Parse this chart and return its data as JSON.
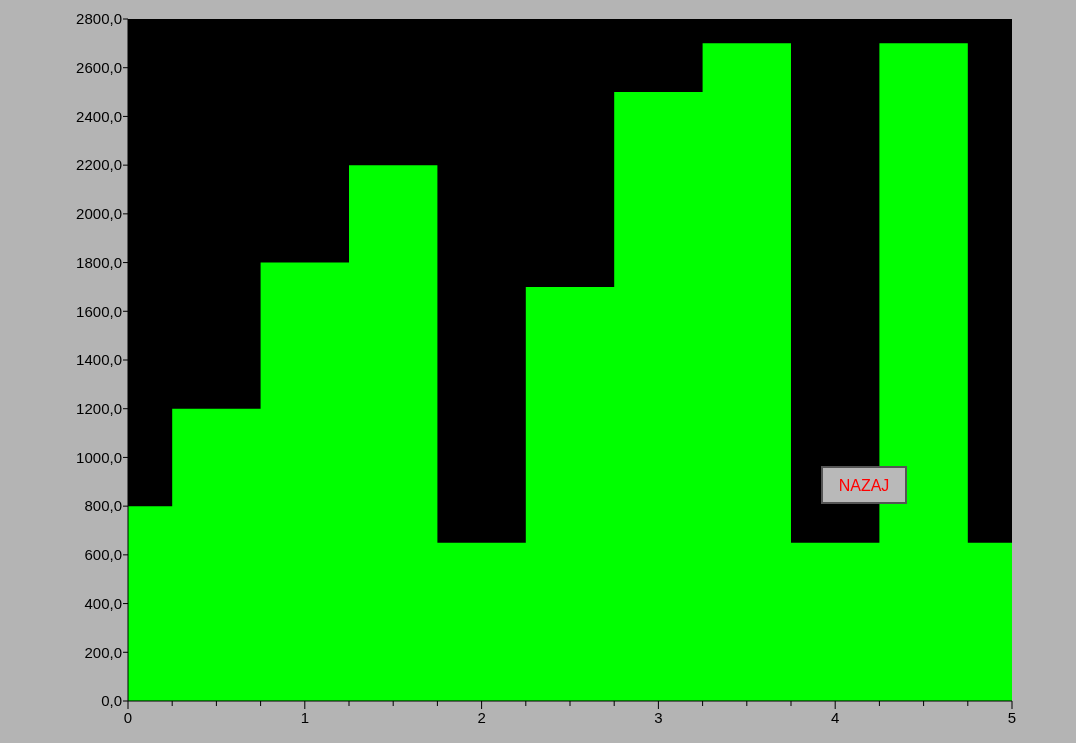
{
  "chart_data": {
    "type": "area",
    "x": [
      0,
      0.25,
      0.25,
      0.75,
      0.75,
      1.25,
      1.25,
      1.75,
      1.75,
      2.25,
      2.25,
      2.75,
      2.75,
      3.25,
      3.25,
      3.75,
      3.75,
      4.25,
      4.25,
      4.75,
      4.75,
      5
    ],
    "series": [
      {
        "color": "#00ff00",
        "values": [
          800,
          800,
          1200,
          1200,
          1800,
          1800,
          2200,
          2200,
          650,
          650,
          1700,
          1700,
          2500,
          2500,
          2700,
          2700,
          650,
          650,
          2700,
          2700,
          650,
          650
        ]
      }
    ],
    "xlim": [
      0,
      5
    ],
    "xticks": [
      0,
      {
        "value": 0.25,
        "label": null
      },
      {
        "value": 0.5,
        "label": null
      },
      {
        "value": 0.75,
        "label": null
      },
      1,
      {
        "value": 1.25,
        "label": null
      },
      {
        "value": 1.5,
        "label": null
      },
      {
        "value": 1.75,
        "label": null
      },
      2,
      {
        "value": 2.25,
        "label": null
      },
      {
        "value": 2.5,
        "label": null
      },
      {
        "value": 2.75,
        "label": null
      },
      3,
      {
        "value": 3.25,
        "label": null
      },
      {
        "value": 3.5,
        "label": null
      },
      {
        "value": 3.75,
        "label": null
      },
      4,
      {
        "value": 4.25,
        "label": null
      },
      {
        "value": 4.5,
        "label": null
      },
      {
        "value": 4.75,
        "label": null
      },
      5
    ],
    "ylim": [
      0,
      2800
    ],
    "yticks": [
      {
        "value": 0,
        "label": "0,0"
      },
      {
        "value": 200,
        "label": "200,0"
      },
      {
        "value": 400,
        "label": "400,0"
      },
      {
        "value": 600,
        "label": "600,0"
      },
      {
        "value": 800,
        "label": "800,0"
      },
      {
        "value": 1000,
        "label": "1000,0"
      },
      {
        "value": 1200,
        "label": "1200,0"
      },
      {
        "value": 1400,
        "label": "1400,0"
      },
      {
        "value": 1600,
        "label": "1600,0"
      },
      {
        "value": 1800,
        "label": "1800,0"
      },
      {
        "value": 2000,
        "label": "2000,0"
      },
      {
        "value": 2200,
        "label": "2200,0"
      },
      {
        "value": 2400,
        "label": "2400,0"
      },
      {
        "value": 2600,
        "label": "2600,0"
      },
      {
        "value": 2800,
        "label": "2800,0"
      }
    ],
    "grid": false,
    "annotations": [
      "NAZAJ"
    ]
  }
}
